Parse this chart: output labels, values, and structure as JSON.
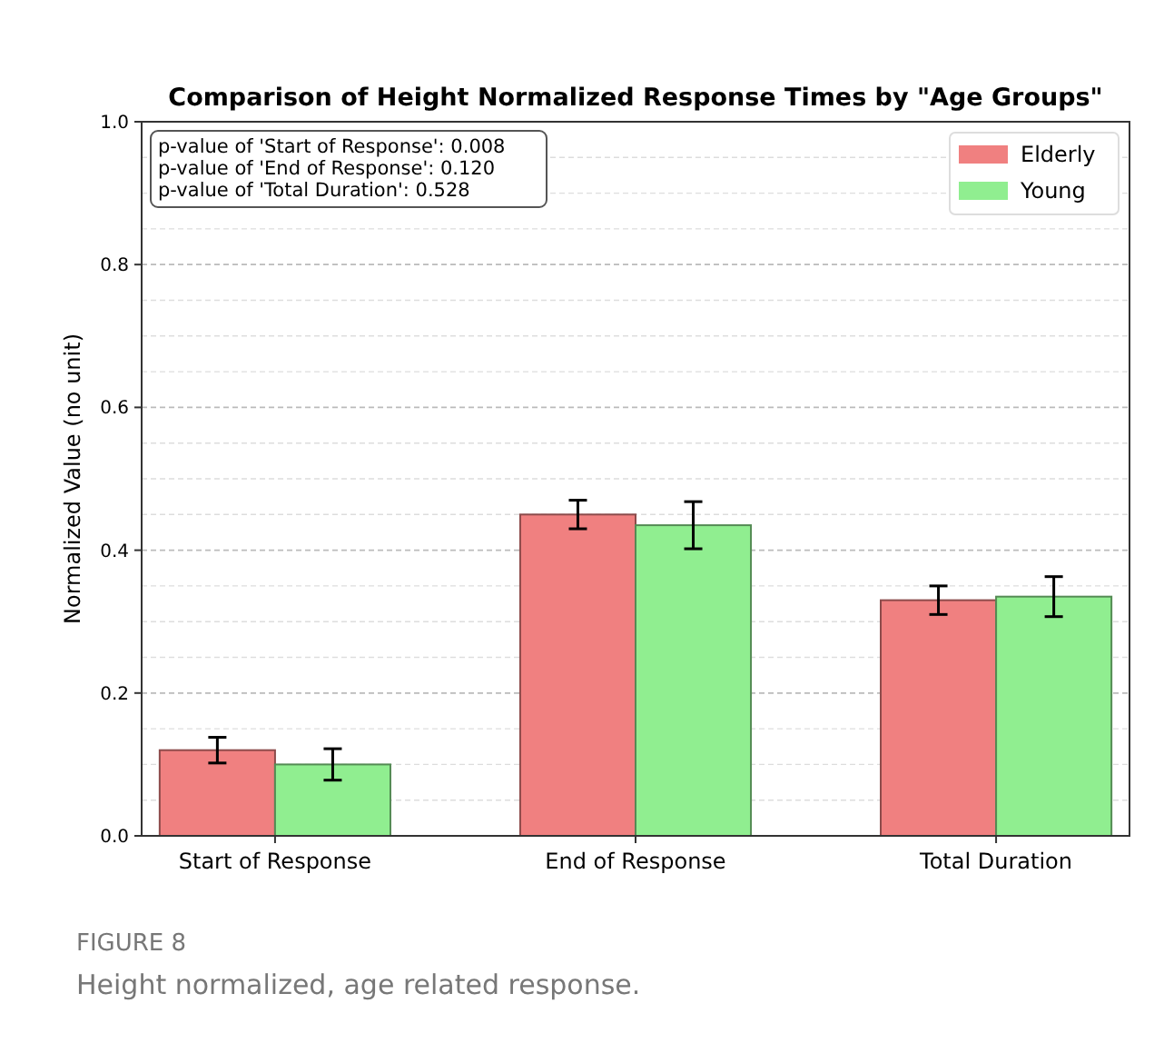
{
  "chart_data": {
    "type": "bar",
    "title": "Comparison of Height Normalized Response Times by \"Age Groups\"",
    "ylabel": "Normalized Value (no unit)",
    "categories": [
      "Start of Response",
      "End of Response",
      "Total Duration"
    ],
    "series": [
      {
        "name": "Elderly",
        "color": "#f08080",
        "values": [
          0.12,
          0.45,
          0.33
        ],
        "errors": [
          0.018,
          0.02,
          0.02
        ]
      },
      {
        "name": "Young",
        "color": "#90ee90",
        "values": [
          0.1,
          0.435,
          0.335
        ],
        "errors": [
          0.022,
          0.033,
          0.028
        ]
      }
    ],
    "ylim": [
      0,
      1
    ],
    "yticks": [
      {
        "value": 0,
        "label": "0.0"
      },
      {
        "value": 0.05,
        "label": null
      },
      {
        "value": 0.1,
        "label": null
      },
      {
        "value": 0.15,
        "label": null
      },
      {
        "value": 0.2,
        "label": "0.2"
      },
      {
        "value": 0.25,
        "label": null
      },
      {
        "value": 0.3,
        "label": null
      },
      {
        "value": 0.35,
        "label": null
      },
      {
        "value": 0.4,
        "label": "0.4"
      },
      {
        "value": 0.45,
        "label": null
      },
      {
        "value": 0.5,
        "label": null
      },
      {
        "value": 0.55,
        "label": null
      },
      {
        "value": 0.6,
        "label": "0.6"
      },
      {
        "value": 0.65,
        "label": null
      },
      {
        "value": 0.7,
        "label": null
      },
      {
        "value": 0.75,
        "label": null
      },
      {
        "value": 0.8,
        "label": "0.8"
      },
      {
        "value": 0.85,
        "label": null
      },
      {
        "value": 0.9,
        "label": null
      },
      {
        "value": 0.95,
        "label": null
      },
      {
        "value": 1,
        "label": "1.0"
      }
    ],
    "grid": "y",
    "legend": "top right",
    "annotations": [
      "p-value of 'Start of Response': 0.008",
      "p-value of 'End of Response': 0.120",
      "p-value of 'Total Duration': 0.528",
      "FIGURE 8",
      "Height normalized, age related response."
    ]
  }
}
